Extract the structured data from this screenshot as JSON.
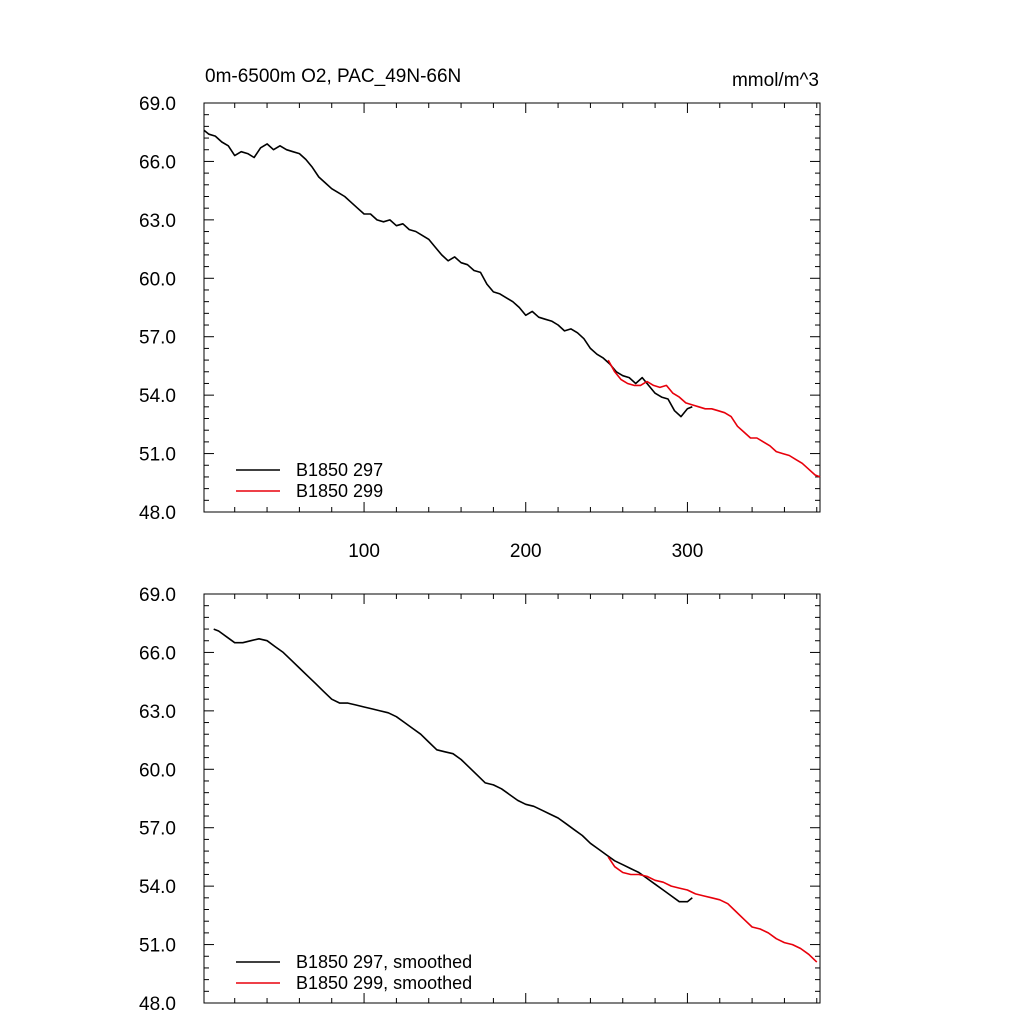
{
  "title_left": "0m-6500m O2, PAC_49N-66N",
  "title_right": "mmol/m^3",
  "chart_data": [
    {
      "type": "line",
      "panel": "top",
      "xlim": [
        1,
        382
      ],
      "ylim": [
        48.0,
        69.0
      ],
      "xticks": [
        100,
        200,
        300
      ],
      "yticks": [
        "48.0",
        "51.0",
        "54.0",
        "57.0",
        "60.0",
        "63.0",
        "66.0",
        "69.0"
      ],
      "show_x_tick_labels": true,
      "legend_position": "bottom-left",
      "series": [
        {
          "name": "B1850 297",
          "color": "#000000",
          "x": [
            1,
            4,
            8,
            12,
            16,
            20,
            24,
            28,
            32,
            36,
            40,
            44,
            48,
            52,
            56,
            60,
            64,
            68,
            72,
            76,
            80,
            84,
            88,
            92,
            96,
            100,
            104,
            108,
            112,
            116,
            120,
            124,
            128,
            132,
            136,
            140,
            144,
            148,
            152,
            156,
            160,
            164,
            168,
            172,
            176,
            180,
            184,
            188,
            192,
            196,
            200,
            204,
            208,
            212,
            216,
            220,
            224,
            228,
            232,
            236,
            240,
            244,
            248,
            252,
            256,
            260,
            264,
            268,
            272,
            276,
            280,
            284,
            288,
            292,
            296,
            300,
            303
          ],
          "values": [
            67.6,
            67.4,
            67.3,
            67.0,
            66.8,
            66.3,
            66.5,
            66.4,
            66.2,
            66.7,
            66.9,
            66.6,
            66.8,
            66.6,
            66.5,
            66.4,
            66.1,
            65.7,
            65.2,
            64.9,
            64.6,
            64.4,
            64.2,
            63.9,
            63.6,
            63.3,
            63.3,
            63.0,
            62.9,
            63.0,
            62.7,
            62.8,
            62.5,
            62.4,
            62.2,
            62.0,
            61.6,
            61.2,
            60.9,
            61.1,
            60.8,
            60.7,
            60.4,
            60.3,
            59.7,
            59.3,
            59.2,
            59.0,
            58.8,
            58.5,
            58.1,
            58.3,
            58.0,
            57.9,
            57.8,
            57.6,
            57.3,
            57.4,
            57.2,
            56.9,
            56.4,
            56.1,
            55.9,
            55.6,
            55.2,
            55.0,
            54.9,
            54.6,
            54.9,
            54.5,
            54.1,
            53.9,
            53.8,
            53.2,
            52.9,
            53.3,
            53.4
          ]
        },
        {
          "name": "B1850 299",
          "color": "#e8000b",
          "x": [
            251,
            255,
            259,
            263,
            267,
            271,
            275,
            279,
            283,
            287,
            291,
            295,
            299,
            303,
            307,
            311,
            315,
            319,
            323,
            327,
            331,
            335,
            339,
            343,
            347,
            351,
            355,
            359,
            363,
            367,
            371,
            375,
            379,
            382
          ],
          "values": [
            55.8,
            55.2,
            54.8,
            54.6,
            54.5,
            54.5,
            54.7,
            54.5,
            54.4,
            54.5,
            54.1,
            53.9,
            53.6,
            53.5,
            53.4,
            53.3,
            53.3,
            53.2,
            53.1,
            52.9,
            52.4,
            52.1,
            51.8,
            51.8,
            51.6,
            51.4,
            51.1,
            51.0,
            50.9,
            50.7,
            50.5,
            50.2,
            49.9,
            49.8
          ]
        }
      ]
    },
    {
      "type": "line",
      "panel": "bottom",
      "xlim": [
        1,
        382
      ],
      "ylim": [
        48.0,
        69.0
      ],
      "xticks": [
        100,
        200,
        300
      ],
      "yticks": [
        "48.0",
        "51.0",
        "54.0",
        "57.0",
        "60.0",
        "63.0",
        "66.0",
        "69.0"
      ],
      "show_x_tick_labels": false,
      "legend_position": "bottom-left",
      "series": [
        {
          "name": "B1850 297, smoothed",
          "color": "#000000",
          "x": [
            7,
            10,
            15,
            20,
            25,
            30,
            35,
            40,
            45,
            50,
            55,
            60,
            65,
            70,
            75,
            80,
            85,
            90,
            95,
            100,
            105,
            110,
            115,
            120,
            125,
            130,
            135,
            140,
            145,
            150,
            155,
            160,
            165,
            170,
            175,
            180,
            185,
            190,
            195,
            200,
            205,
            210,
            215,
            220,
            225,
            230,
            235,
            240,
            245,
            250,
            255,
            260,
            265,
            270,
            275,
            280,
            285,
            290,
            295,
            300,
            303
          ],
          "values": [
            67.2,
            67.1,
            66.8,
            66.5,
            66.5,
            66.6,
            66.7,
            66.6,
            66.3,
            66.0,
            65.6,
            65.2,
            64.8,
            64.4,
            64.0,
            63.6,
            63.4,
            63.4,
            63.3,
            63.2,
            63.1,
            63.0,
            62.9,
            62.7,
            62.4,
            62.1,
            61.8,
            61.4,
            61.0,
            60.9,
            60.8,
            60.5,
            60.1,
            59.7,
            59.3,
            59.2,
            59.0,
            58.7,
            58.4,
            58.2,
            58.1,
            57.9,
            57.7,
            57.5,
            57.2,
            56.9,
            56.6,
            56.2,
            55.9,
            55.6,
            55.3,
            55.1,
            54.9,
            54.7,
            54.4,
            54.1,
            53.8,
            53.5,
            53.2,
            53.2,
            53.4
          ]
        },
        {
          "name": "B1850 299, smoothed",
          "color": "#e8000b",
          "x": [
            251,
            255,
            260,
            265,
            270,
            275,
            280,
            285,
            290,
            295,
            300,
            305,
            310,
            315,
            320,
            325,
            330,
            335,
            340,
            345,
            350,
            355,
            360,
            365,
            370,
            375,
            380
          ],
          "values": [
            55.5,
            55.0,
            54.7,
            54.6,
            54.6,
            54.5,
            54.3,
            54.2,
            54.0,
            53.9,
            53.8,
            53.6,
            53.5,
            53.4,
            53.3,
            53.1,
            52.7,
            52.3,
            51.9,
            51.8,
            51.6,
            51.3,
            51.1,
            51.0,
            50.8,
            50.5,
            50.1
          ]
        }
      ]
    }
  ]
}
